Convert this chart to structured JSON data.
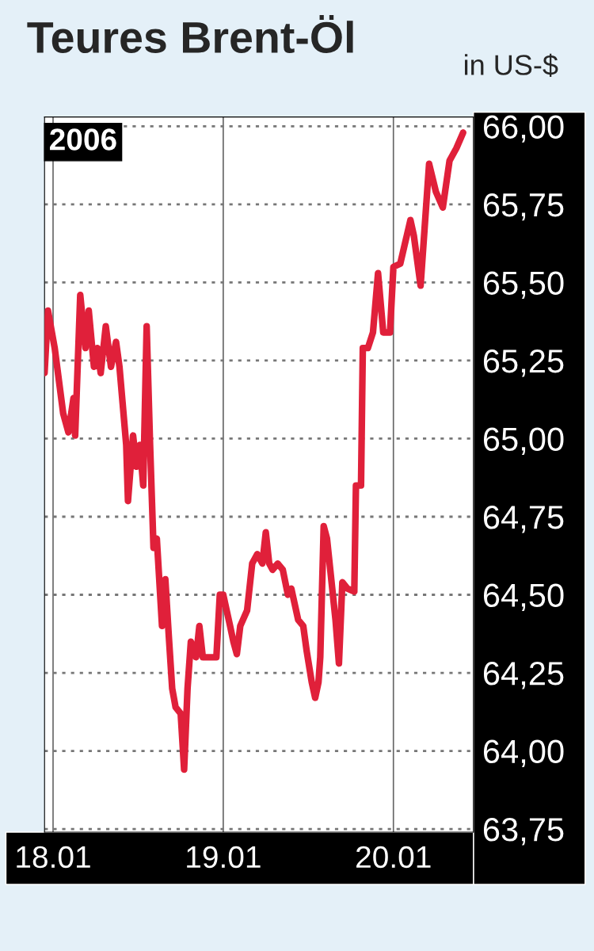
{
  "chart_data": {
    "type": "line",
    "title": "Teures Brent-Öl",
    "ylabel": "in US-$",
    "annotations": [
      "2006"
    ],
    "x": [
      "2006-01-17T22:48",
      "2006-01-17T23:17",
      "2006-01-18T00:14",
      "2006-01-18T01:26",
      "2006-01-18T02:10",
      "2006-01-18T02:53",
      "2006-01-18T03:07",
      "2006-01-18T03:50",
      "2006-01-18T04:34",
      "2006-01-18T05:02",
      "2006-01-18T05:46",
      "2006-01-18T06:14",
      "2006-01-18T06:43",
      "2006-01-18T07:26",
      "2006-01-18T08:10",
      "2006-01-18T08:53",
      "2006-01-18T09:22",
      "2006-01-18T10:19",
      "2006-01-18T10:34",
      "2006-01-18T11:17",
      "2006-01-18T11:46",
      "2006-01-18T12:14",
      "2006-01-18T12:43",
      "2006-01-18T13:12",
      "2006-01-18T13:41",
      "2006-01-18T14:10",
      "2006-01-18T14:38",
      "2006-01-18T15:22",
      "2006-01-18T15:50",
      "2006-01-18T16:19",
      "2006-01-18T16:48",
      "2006-01-18T17:17",
      "2006-01-18T18:00",
      "2006-01-18T18:29",
      "2006-01-18T18:58",
      "2006-01-18T19:26",
      "2006-01-18T20:10",
      "2006-01-18T20:38",
      "2006-01-18T21:07",
      "2006-01-18T22:05",
      "2006-01-18T23:02",
      "2006-01-18T23:31",
      "2006-01-19T00:00",
      "2006-01-19T00:58",
      "2006-01-19T01:26",
      "2006-01-19T01:55",
      "2006-01-19T02:24",
      "2006-01-19T03:22",
      "2006-01-19T04:05",
      "2006-01-19T04:48",
      "2006-01-19T05:31",
      "2006-01-19T06:00",
      "2006-01-19T06:29",
      "2006-01-19T06:58",
      "2006-01-19T07:41",
      "2006-01-19T08:24",
      "2006-01-19T09:07",
      "2006-01-19T09:36",
      "2006-01-19T10:34",
      "2006-01-19T11:17",
      "2006-01-19T11:46",
      "2006-01-19T12:29",
      "2006-01-19T12:58",
      "2006-01-19T13:26",
      "2006-01-19T13:41",
      "2006-01-19T14:10",
      "2006-01-19T14:38",
      "2006-01-19T15:50",
      "2006-01-19T16:19",
      "2006-01-19T16:48",
      "2006-01-19T17:31",
      "2006-01-19T18:29",
      "2006-01-19T18:43",
      "2006-01-19T19:26",
      "2006-01-19T19:41",
      "2006-01-19T20:24",
      "2006-01-19T21:07",
      "2006-01-19T21:50",
      "2006-01-19T22:34",
      "2006-01-19T23:31",
      "2006-01-20T00:00",
      "2006-01-20T00:58",
      "2006-01-20T02:24",
      "2006-01-20T02:53",
      "2006-01-20T03:50",
      "2006-01-20T05:02",
      "2006-01-20T06:00",
      "2006-01-20T06:58",
      "2006-01-20T07:55",
      "2006-01-20T08:53",
      "2006-01-20T09:50"
    ],
    "series": [
      {
        "color": "#e0203a",
        "values": [
          65.21,
          65.41,
          65.29,
          65.08,
          65.02,
          65.13,
          65.01,
          65.46,
          65.29,
          65.41,
          65.23,
          65.29,
          65.21,
          65.36,
          65.23,
          65.31,
          65.23,
          64.98,
          64.8,
          65.01,
          64.91,
          64.98,
          64.85,
          65.36,
          64.98,
          64.65,
          64.68,
          64.4,
          64.55,
          64.37,
          64.2,
          64.14,
          64.12,
          63.94,
          64.2,
          64.35,
          64.3,
          64.4,
          64.3,
          64.3,
          64.3,
          64.5,
          64.5,
          64.4,
          64.35,
          64.31,
          64.4,
          64.45,
          64.6,
          64.63,
          64.6,
          64.7,
          64.6,
          64.58,
          64.6,
          64.58,
          64.5,
          64.52,
          64.42,
          64.4,
          64.32,
          64.22,
          64.17,
          64.22,
          64.3,
          64.72,
          64.68,
          64.42,
          64.28,
          64.54,
          64.52,
          64.51,
          64.85,
          64.85,
          65.29,
          65.29,
          65.34,
          65.53,
          65.34,
          65.34,
          65.55,
          65.56,
          65.7,
          65.65,
          65.49,
          65.88,
          65.79,
          65.74,
          65.89,
          65.93,
          65.98
        ]
      }
    ],
    "xlim": [
      "2006-01-17T22:48",
      "2006-01-20T11:17"
    ],
    "ylim": [
      63.74,
      66.03
    ],
    "xticks": [
      {
        "value": "2006-01-18",
        "label": "18.01"
      },
      {
        "value": "2006-01-19",
        "label": "19.01"
      },
      {
        "value": "2006-01-20",
        "label": "20.01"
      }
    ],
    "yticks": [
      {
        "value": 63.75,
        "label": "63,75"
      },
      {
        "value": 64,
        "label": "64,00"
      },
      {
        "value": 64.25,
        "label": "64,25"
      },
      {
        "value": 64.5,
        "label": "64,50"
      },
      {
        "value": 64.75,
        "label": "64,75"
      },
      {
        "value": 65,
        "label": "65,00"
      },
      {
        "value": 65.25,
        "label": "65,25"
      },
      {
        "value": 65.5,
        "label": "65,50"
      },
      {
        "value": 65.75,
        "label": "65,75"
      },
      {
        "value": 66,
        "label": "66,00"
      }
    ],
    "grid": true,
    "line_style": "solid",
    "marker": "none"
  }
}
